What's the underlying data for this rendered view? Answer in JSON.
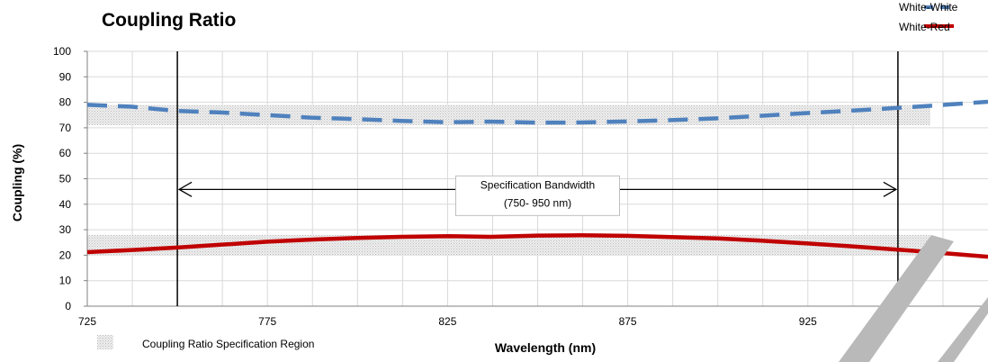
{
  "chart_data": {
    "type": "line",
    "title": "Coupling Ratio",
    "xlabel": "Wavelength (nm)",
    "ylabel": "Coupling  (%)",
    "xlim": [
      725,
      975
    ],
    "ylim": [
      0,
      100
    ],
    "x_ticks": [
      "725",
      "775",
      "825",
      "875",
      "925"
    ],
    "y_ticks": [
      "0",
      "10",
      "20",
      "30",
      "40",
      "50",
      "60",
      "70",
      "80",
      "90",
      "100"
    ],
    "grid": true,
    "legend_position": "top-right",
    "series": [
      {
        "name": "White-White",
        "style": "dashed",
        "color": "#4F81BD",
        "x": [
          725,
          737,
          750,
          762,
          775,
          787,
          800,
          812,
          825,
          837,
          850,
          862,
          875,
          887,
          900,
          912,
          925,
          937,
          950,
          962,
          975
        ],
        "y": [
          79,
          78.3,
          76.6,
          76,
          75,
          74,
          73.4,
          72.7,
          72.2,
          72.4,
          72,
          72.1,
          72.5,
          73,
          73.7,
          74.7,
          75.8,
          76.7,
          77.8,
          78.9,
          80.2
        ]
      },
      {
        "name": "White-Red",
        "style": "solid",
        "color": "#C00000",
        "x": [
          725,
          737,
          750,
          762,
          775,
          787,
          800,
          812,
          825,
          837,
          850,
          862,
          875,
          887,
          900,
          912,
          925,
          937,
          950,
          962,
          975
        ],
        "y": [
          21.2,
          22,
          23,
          24.1,
          25.3,
          26.1,
          26.8,
          27.2,
          27.5,
          27.2,
          27.7,
          27.8,
          27.6,
          27.1,
          26.6,
          25.7,
          24.6,
          23.5,
          22.2,
          20.9,
          19.4
        ]
      }
    ],
    "spec_regions": [
      {
        "x": [
          725,
          959
        ],
        "y": [
          71,
          79
        ]
      },
      {
        "x": [
          725,
          959
        ],
        "y": [
          20,
          28
        ]
      }
    ],
    "spec_region_legend": "Coupling Ratio Specification Region",
    "spec_bandwidth": {
      "x": [
        750,
        950
      ],
      "y": 55,
      "label_line1": "Specification Bandwidth",
      "label_line2": "(750- 950 nm)"
    }
  }
}
